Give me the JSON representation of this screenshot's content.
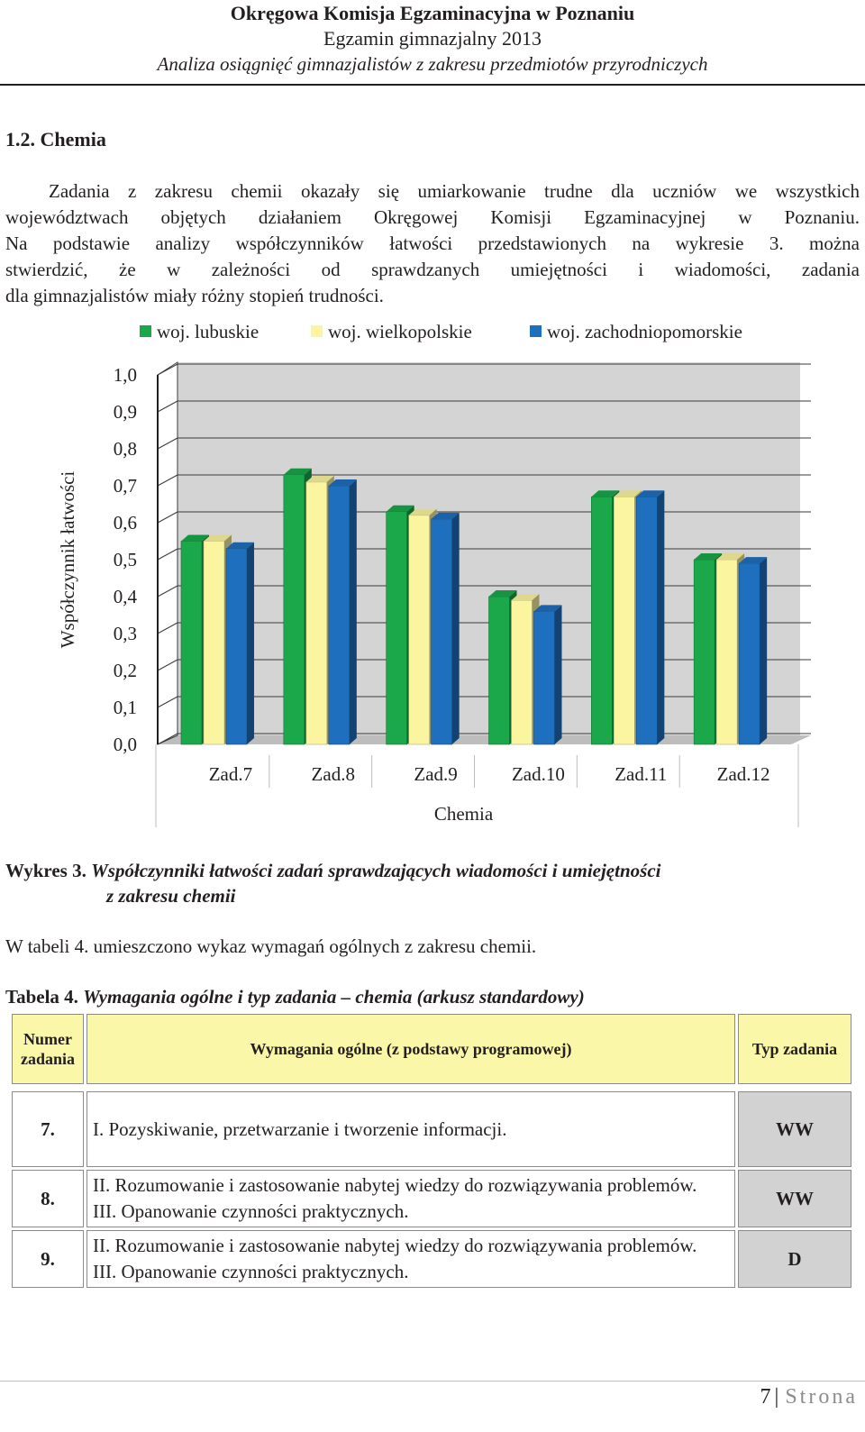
{
  "header": {
    "line1": "Okręgowa Komisja Egzaminacyjna w Poznaniu",
    "line2": "Egzamin gimnazjalny 2013",
    "line3": "Analiza osiągnięć gimnazjalistów z zakresu przedmiotów przyrodniczych"
  },
  "section": {
    "title": "1.2.  Chemia"
  },
  "intro": [
    "Zadania z zakresu chemii okazały się umiarkowanie trudne dla uczniów we wszystkich",
    "województwach objętych działaniem Okręgowej Komisji Egzaminacyjnej w Poznaniu.",
    "Na podstawie analizy współczynników łatwości przedstawionych na wykresie 3. można",
    "stwierdzić, że w zależności od sprawdzanych umiejętności i wiadomości, zadania",
    "dla gimnazjalistów miały różny stopień trudności."
  ],
  "chart_data": {
    "type": "bar",
    "categories": [
      "Zad.7",
      "Zad.8",
      "Zad.9",
      "Zad.10",
      "Zad.11",
      "Zad.12"
    ],
    "series": [
      {
        "name": "woj. lubuskie",
        "color": "#1aa84a",
        "values": [
          0.55,
          0.73,
          0.63,
          0.4,
          0.67,
          0.5
        ]
      },
      {
        "name": "woj. wielkopolskie",
        "color": "#fbf5a0",
        "values": [
          0.55,
          0.71,
          0.62,
          0.39,
          0.67,
          0.5
        ]
      },
      {
        "name": "woj. zachodniopomorskie",
        "color": "#1f6fbf",
        "values": [
          0.53,
          0.7,
          0.61,
          0.36,
          0.67,
          0.49
        ]
      }
    ],
    "yticks": [
      "0,0",
      "0,1",
      "0,2",
      "0,3",
      "0,4",
      "0,5",
      "0,6",
      "0,7",
      "0,8",
      "0,9",
      "1,0"
    ],
    "ylim": [
      0,
      1
    ],
    "ylabel": "Współczynnik łatwości",
    "xlabel": "Chemia",
    "grid": true,
    "legend": "top",
    "plot_bg": "#d4d4d4"
  },
  "caption": {
    "label": "Wykres 3.",
    "text1": "Współczynniki łatwości zadań sprawdzających wiadomości i umiejętności",
    "text2": "z zakresu chemii"
  },
  "table_intro": "W tabeli 4. umieszczono wykaz wymagań ogólnych z zakresu chemii.",
  "table_caption": {
    "label": "Tabela 4.",
    "text": "Wymagania ogólne i typ zadania – chemia (arkusz standardowy)"
  },
  "table": {
    "headers": [
      "Numer zadania",
      "Wymagania ogólne (z podstawy programowej)",
      "Typ zadania"
    ],
    "rows": [
      {
        "num": "7.",
        "req": [
          "I. Pozyskiwanie, przetwarzanie i tworzenie informacji."
        ],
        "type": "WW"
      },
      {
        "num": "8.",
        "req": [
          "II. Rozumowanie i zastosowanie nabytej wiedzy do rozwiązywania problemów.",
          "III. Opanowanie czynności praktycznych."
        ],
        "type": "WW"
      },
      {
        "num": "9.",
        "req": [
          "II. Rozumowanie i zastosowanie nabytej wiedzy do rozwiązywania problemów.",
          "III. Opanowanie czynności praktycznych."
        ],
        "type": "D"
      }
    ]
  },
  "footer": {
    "page": "7",
    "sep": "|",
    "word": "Strona"
  }
}
